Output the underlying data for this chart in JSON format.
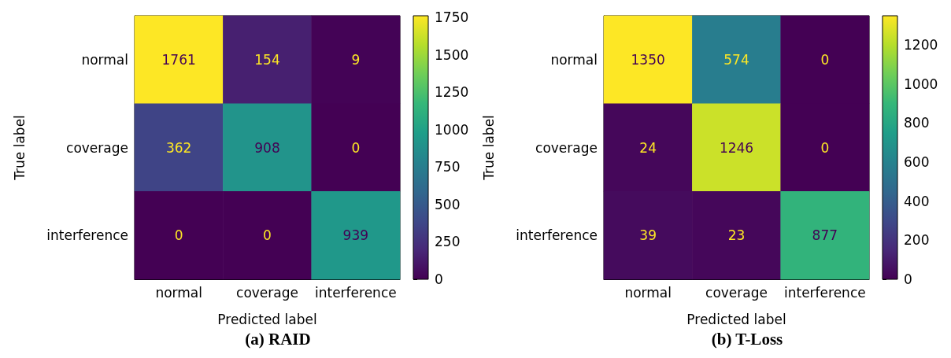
{
  "chart_data": [
    {
      "type": "heatmap",
      "title": "(a) RAID",
      "xlabel": "Predicted label",
      "ylabel": "True label",
      "categories": [
        "normal",
        "coverage",
        "interference"
      ],
      "y_categories": [
        "normal",
        "coverage",
        "interference"
      ],
      "cells": [
        [
          1761,
          154,
          9
        ],
        [
          362,
          908,
          0
        ],
        [
          0,
          0,
          939
        ]
      ],
      "data_labels": true,
      "clim": [
        0,
        1761
      ],
      "cticks": [
        0,
        250,
        500,
        750,
        1000,
        1250,
        1500,
        1750
      ]
    },
    {
      "type": "heatmap",
      "title": "(b) T-Loss",
      "xlabel": "Predicted label",
      "ylabel": "True label",
      "categories": [
        "normal",
        "coverage",
        "interference"
      ],
      "y_categories": [
        "normal",
        "coverage",
        "interference"
      ],
      "cells": [
        [
          1350,
          574,
          0
        ],
        [
          24,
          1246,
          0
        ],
        [
          39,
          23,
          877
        ]
      ],
      "data_labels": true,
      "clim": [
        0,
        1350
      ],
      "cticks": [
        0,
        200,
        400,
        600,
        800,
        1000,
        1200
      ]
    }
  ]
}
